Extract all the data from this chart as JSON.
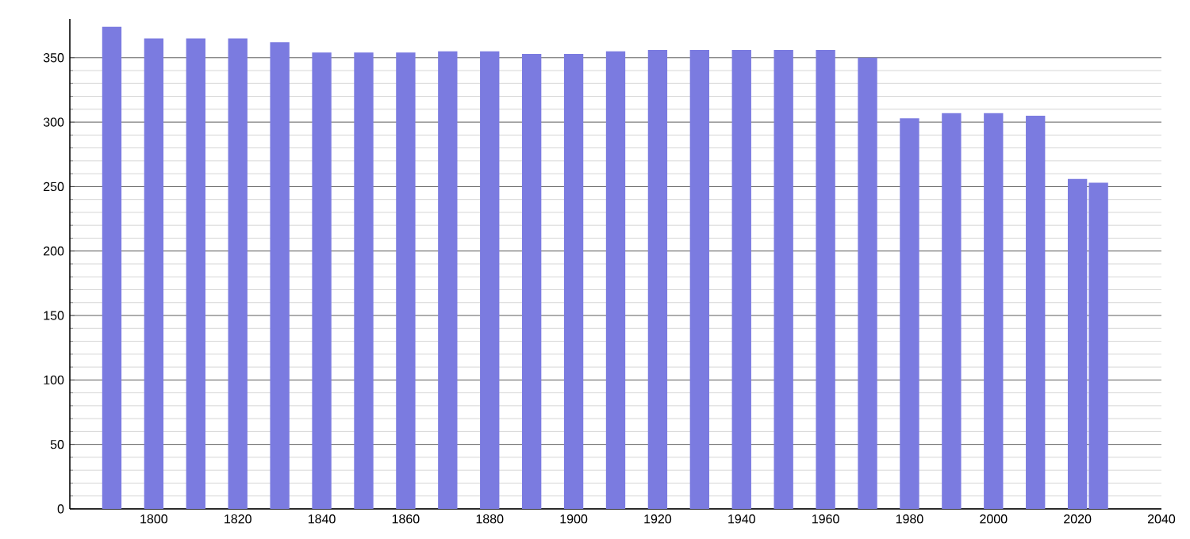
{
  "chart_data": {
    "type": "bar",
    "x": [
      1790,
      1800,
      1810,
      1820,
      1830,
      1840,
      1850,
      1860,
      1870,
      1880,
      1890,
      1900,
      1910,
      1920,
      1930,
      1940,
      1950,
      1960,
      1970,
      1980,
      1990,
      2000,
      2010,
      2020,
      2025
    ],
    "values": [
      374,
      365,
      365,
      365,
      362,
      354,
      354,
      354,
      355,
      355,
      353,
      353,
      355,
      356,
      356,
      356,
      356,
      356,
      350,
      303,
      307,
      307,
      305,
      256,
      253
    ],
    "color": "#7b7be0",
    "xlim": [
      1780,
      2040
    ],
    "xticks": [
      1800,
      1820,
      1840,
      1860,
      1880,
      1900,
      1920,
      1940,
      1960,
      1980,
      2000,
      2020,
      2040
    ],
    "ylim": [
      0,
      380
    ],
    "yticks": [
      0,
      50,
      100,
      150,
      200,
      250,
      300,
      350
    ],
    "grid": "y"
  }
}
